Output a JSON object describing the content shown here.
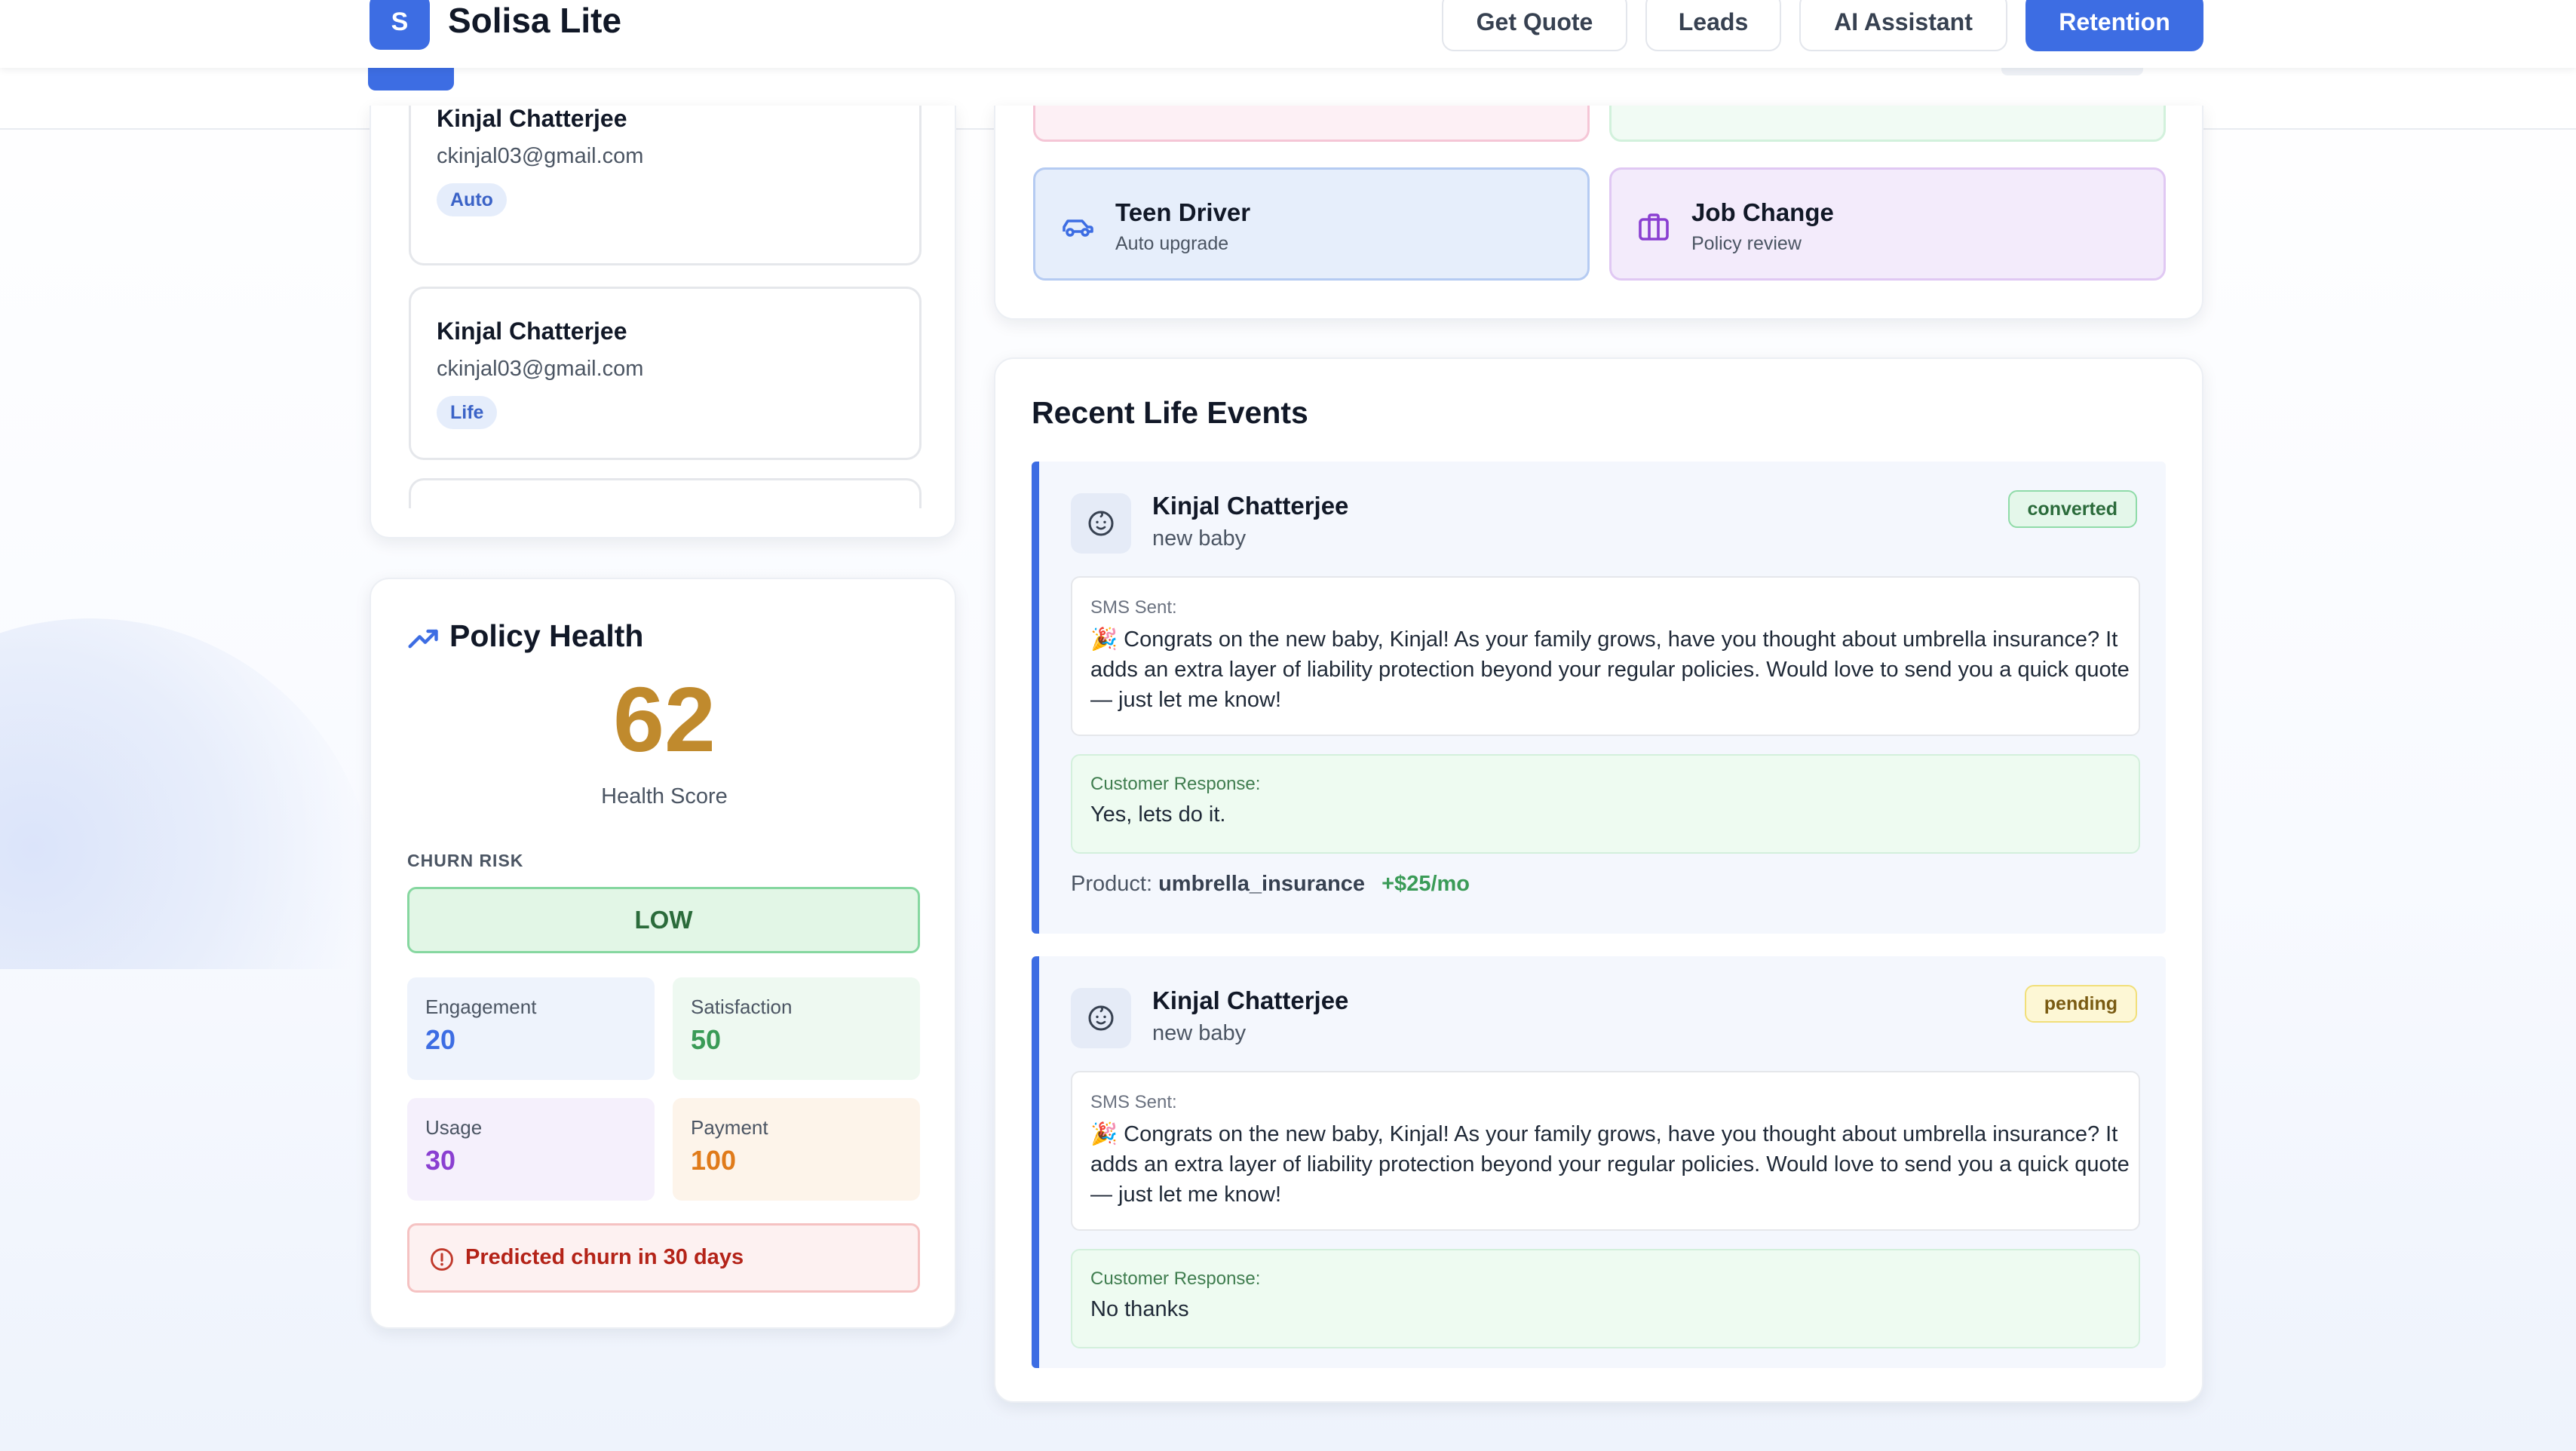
{
  "app": {
    "logo_letter": "S",
    "name": "Solisa Lite"
  },
  "nav": {
    "items": [
      {
        "label": "Get Quote"
      },
      {
        "label": "Leads"
      },
      {
        "label": "AI Assistant"
      },
      {
        "label": "Retention"
      }
    ],
    "active": "Retention"
  },
  "customers": [
    {
      "name": "Kinjal Chatterjee",
      "email": "ckinjal03@gmail.com",
      "tag": "Auto"
    },
    {
      "name": "Kinjal Chatterjee",
      "email": "ckinjal03@gmail.com",
      "tag": "Life"
    }
  ],
  "policy_health": {
    "title": "Policy Health",
    "icon": "trending-up-icon",
    "score": "62",
    "score_label": "Health Score",
    "churn_risk_label": "CHURN RISK",
    "churn_risk_value": "LOW",
    "metrics": [
      {
        "label": "Engagement",
        "value": "20",
        "color": "#3d6de3"
      },
      {
        "label": "Satisfaction",
        "value": "50",
        "color": "#3a9b57"
      },
      {
        "label": "Usage",
        "value": "30",
        "color": "#8a3fd1"
      },
      {
        "label": "Payment",
        "value": "100",
        "color": "#e07b1a"
      }
    ],
    "warning": "Predicted churn in 30 days"
  },
  "triggers": [
    {
      "title": "Teen Driver",
      "subtitle": "Auto upgrade",
      "icon": "car-icon"
    },
    {
      "title": "Job Change",
      "subtitle": "Policy review",
      "icon": "briefcase-icon"
    }
  ],
  "events": {
    "title": "Recent Life Events",
    "items": [
      {
        "name": "Kinjal Chatterjee",
        "type": "new baby",
        "status": "converted",
        "sms_label": "SMS Sent:",
        "sms_text": "🎉 Congrats on the new baby, Kinjal! As your family grows, have you thought about umbrella insurance? It adds an extra layer of liability protection beyond your regular policies. Would love to send you a quick quote — just let me know!",
        "response_label": "Customer Response:",
        "response_text": "Yes, lets do it.",
        "product_label": "Product:",
        "product_name": "umbrella_insurance",
        "product_revenue": "+$25/mo"
      },
      {
        "name": "Kinjal Chatterjee",
        "type": "new baby",
        "status": "pending",
        "sms_label": "SMS Sent:",
        "sms_text": "🎉 Congrats on the new baby, Kinjal! As your family grows, have you thought about umbrella insurance? It adds an extra layer of liability protection beyond your regular policies. Would love to send you a quick quote — just let me know!",
        "response_label": "Customer Response:",
        "response_text": "No thanks"
      }
    ]
  }
}
